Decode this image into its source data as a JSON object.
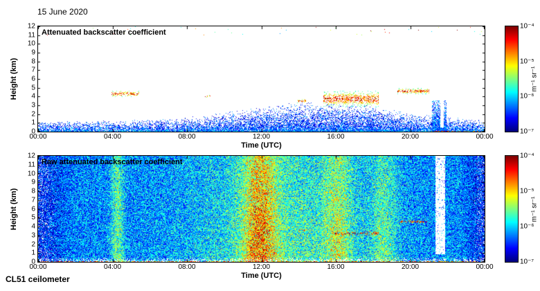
{
  "figure": {
    "date": "15 June 2020",
    "instrument": "CL51 ceilometer"
  },
  "chart_data": [
    {
      "type": "heatmap",
      "title": "Attenuated backscatter coefficient",
      "xlabel": "Time (UTC)",
      "ylabel": "Height (km)",
      "x_ticks": [
        "00:00",
        "04:00",
        "08:00",
        "12:00",
        "16:00",
        "20:00",
        "00:00"
      ],
      "x_range_hours": [
        0,
        24
      ],
      "y_ticks": [
        "0",
        "1",
        "2",
        "3",
        "4",
        "5",
        "6",
        "7",
        "8",
        "9",
        "10",
        "11",
        "12"
      ],
      "y_range_km": [
        0,
        12
      ],
      "grid": false,
      "legend": "colorbar-right",
      "colorbar": {
        "ticks": [
          "10⁻⁴",
          "10⁻⁵",
          "10⁻⁶",
          "10⁻⁷"
        ],
        "unit": "m⁻¹ sr⁻¹",
        "log10_range": [
          -7,
          -4
        ],
        "colormap": "jet"
      },
      "model": {
        "kind": "attenuated",
        "seed": 11,
        "boundary_layer": {
          "base_km": 1.0,
          "midday_bump_km": 1.7,
          "midday_center_h": 15,
          "midday_width_h": 5.5
        },
        "clouds": [
          {
            "t": [
              3.9,
              5.4
            ],
            "h": [
              4.0,
              4.7
            ],
            "density": 0.5
          },
          {
            "t": [
              8.9,
              9.3
            ],
            "h": [
              3.9,
              4.2
            ],
            "density": 0.35
          },
          {
            "t": [
              13.9,
              14.4
            ],
            "h": [
              3.3,
              3.8
            ],
            "density": 0.45
          },
          {
            "t": [
              15.3,
              18.3
            ],
            "h": [
              2.8,
              4.7
            ],
            "density": 0.55
          },
          {
            "t": [
              19.3,
              21.0
            ],
            "h": [
              4.3,
              5.0
            ],
            "density": 0.65
          }
        ],
        "precip_column": {
          "t": [
            21.15,
            21.95
          ],
          "h": [
            0,
            3.6
          ]
        },
        "clear_gap": {
          "t": [
            21.6,
            21.78
          ]
        }
      }
    },
    {
      "type": "heatmap",
      "title": "Raw attenuated backscatter coefficient",
      "xlabel": "Time (UTC)",
      "ylabel": "Height (km)",
      "x_ticks": [
        "00:00",
        "04:00",
        "08:00",
        "12:00",
        "16:00",
        "20:00",
        "00:00"
      ],
      "x_range_hours": [
        0,
        24
      ],
      "y_ticks": [
        "0",
        "1",
        "2",
        "3",
        "4",
        "5",
        "6",
        "7",
        "8",
        "9",
        "10",
        "11",
        "12"
      ],
      "y_range_km": [
        0,
        12
      ],
      "grid": false,
      "legend": "colorbar-right",
      "colorbar": {
        "ticks": [
          "10⁻⁴",
          "10⁻⁵",
          "10⁻⁶",
          "10⁻⁷"
        ],
        "unit": "m⁻¹ sr⁻¹",
        "log10_range": [
          -7,
          -4
        ],
        "colormap": "jet"
      },
      "model": {
        "kind": "raw",
        "seed": 22,
        "noise_floor_log10": -6.8,
        "plumes": [
          {
            "center_h": 11.9,
            "width_h": 0.9,
            "amp": 1.6
          },
          {
            "center_h": 4.25,
            "width_h": 0.35,
            "amp": 1.0
          },
          {
            "center_h": 16.1,
            "width_h": 0.7,
            "amp": 0.9
          },
          {
            "center_h": 18.6,
            "width_h": 0.7,
            "amp": 0.7
          },
          {
            "center_h": 13.2,
            "width_h": 4.8,
            "amp": 0.8
          }
        ],
        "clouds": [
          {
            "t": [
              15.9,
              18.3
            ],
            "h": [
              2.9,
              3.6
            ],
            "density": 0.35
          },
          {
            "t": [
              19.4,
              20.9
            ],
            "h": [
              4.4,
              4.8
            ],
            "density": 0.55
          },
          {
            "t": [
              13.9,
              14.4
            ],
            "h": [
              3.4,
              3.8
            ],
            "density": 0.35
          }
        ],
        "white_column": {
          "t": [
            21.35,
            21.85
          ],
          "h_min": 0.9
        },
        "ground_band_km": 0.55
      }
    }
  ]
}
